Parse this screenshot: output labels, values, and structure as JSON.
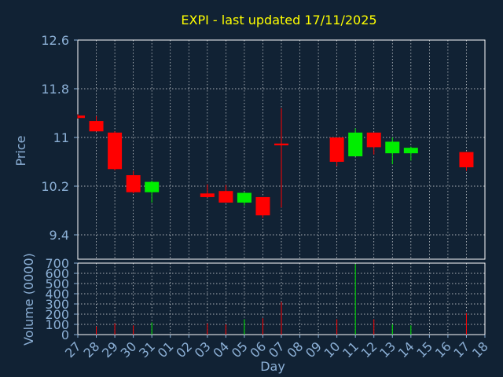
{
  "chart_data": {
    "type": "candlestick",
    "title": "EXPI - last updated 17/11/2025",
    "xlabel": "Day",
    "price_panel": {
      "ylabel": "Price",
      "ylim": [
        9.0,
        12.6
      ],
      "yticks": [
        "12.6",
        "11.8",
        "11",
        "10.2",
        "9.4"
      ],
      "ytick_values": [
        12.6,
        11.8,
        11.0,
        10.2,
        9.4
      ]
    },
    "volume_panel": {
      "ylabel": "Volume (0000)",
      "ylim": [
        0,
        700
      ],
      "yticks": [
        "700",
        "600",
        "500",
        "400",
        "300",
        "200",
        "100",
        "0"
      ],
      "ytick_values": [
        700,
        600,
        500,
        400,
        300,
        200,
        100,
        0
      ]
    },
    "colors": {
      "up": "#00ee00",
      "down": "#ff0000"
    },
    "grid": true,
    "categories": [
      "27",
      "28",
      "29",
      "30",
      "31",
      "01",
      "02",
      "03",
      "04",
      "05",
      "06",
      "07",
      "08",
      "09",
      "10",
      "11",
      "12",
      "13",
      "14",
      "15",
      "16",
      "17",
      "18"
    ],
    "series": [
      {
        "day": "27",
        "open": 11.36,
        "high": 11.38,
        "low": 11.31,
        "close": 11.32,
        "volume": 0
      },
      {
        "day": "28",
        "open": 11.27,
        "high": 11.35,
        "low": 11.1,
        "close": 11.1,
        "volume": 80
      },
      {
        "day": "29",
        "open": 11.08,
        "high": 11.1,
        "low": 10.46,
        "close": 10.48,
        "volume": 110
      },
      {
        "day": "30",
        "open": 10.38,
        "high": 10.45,
        "low": 10.08,
        "close": 10.1,
        "volume": 90
      },
      {
        "day": "31",
        "open": 10.1,
        "high": 10.29,
        "low": 9.93,
        "close": 10.27,
        "volume": 120
      },
      {
        "day": "01",
        "volume": 0
      },
      {
        "day": "02",
        "volume": 0
      },
      {
        "day": "03",
        "open": 10.08,
        "high": 10.23,
        "low": 10.01,
        "close": 10.02,
        "volume": 110
      },
      {
        "day": "04",
        "open": 10.12,
        "high": 10.22,
        "low": 9.93,
        "close": 9.93,
        "volume": 100
      },
      {
        "day": "05",
        "open": 9.93,
        "high": 10.1,
        "low": 9.88,
        "close": 10.09,
        "volume": 150
      },
      {
        "day": "06",
        "open": 10.02,
        "high": 10.02,
        "low": 9.68,
        "close": 9.72,
        "volume": 160
      },
      {
        "day": "07",
        "open": 10.9,
        "high": 11.48,
        "low": 9.85,
        "close": 10.87,
        "volume": 320
      },
      {
        "day": "08",
        "volume": 0
      },
      {
        "day": "09",
        "volume": 0
      },
      {
        "day": "10",
        "open": 11.0,
        "high": 11.0,
        "low": 10.53,
        "close": 10.6,
        "volume": 150
      },
      {
        "day": "11",
        "open": 10.69,
        "high": 11.15,
        "low": 10.69,
        "close": 11.08,
        "volume": 690
      },
      {
        "day": "12",
        "open": 11.08,
        "high": 11.08,
        "low": 10.72,
        "close": 10.84,
        "volume": 150
      },
      {
        "day": "13",
        "open": 10.74,
        "high": 11.0,
        "low": 10.56,
        "close": 10.93,
        "volume": 100
      },
      {
        "day": "14",
        "open": 10.74,
        "high": 10.85,
        "low": 10.62,
        "close": 10.83,
        "volume": 90
      },
      {
        "day": "15",
        "volume": 0
      },
      {
        "day": "16",
        "volume": 0
      },
      {
        "day": "17",
        "open": 10.76,
        "high": 10.76,
        "low": 10.45,
        "close": 10.51,
        "volume": 210
      },
      {
        "day": "18",
        "volume": 0
      }
    ]
  }
}
